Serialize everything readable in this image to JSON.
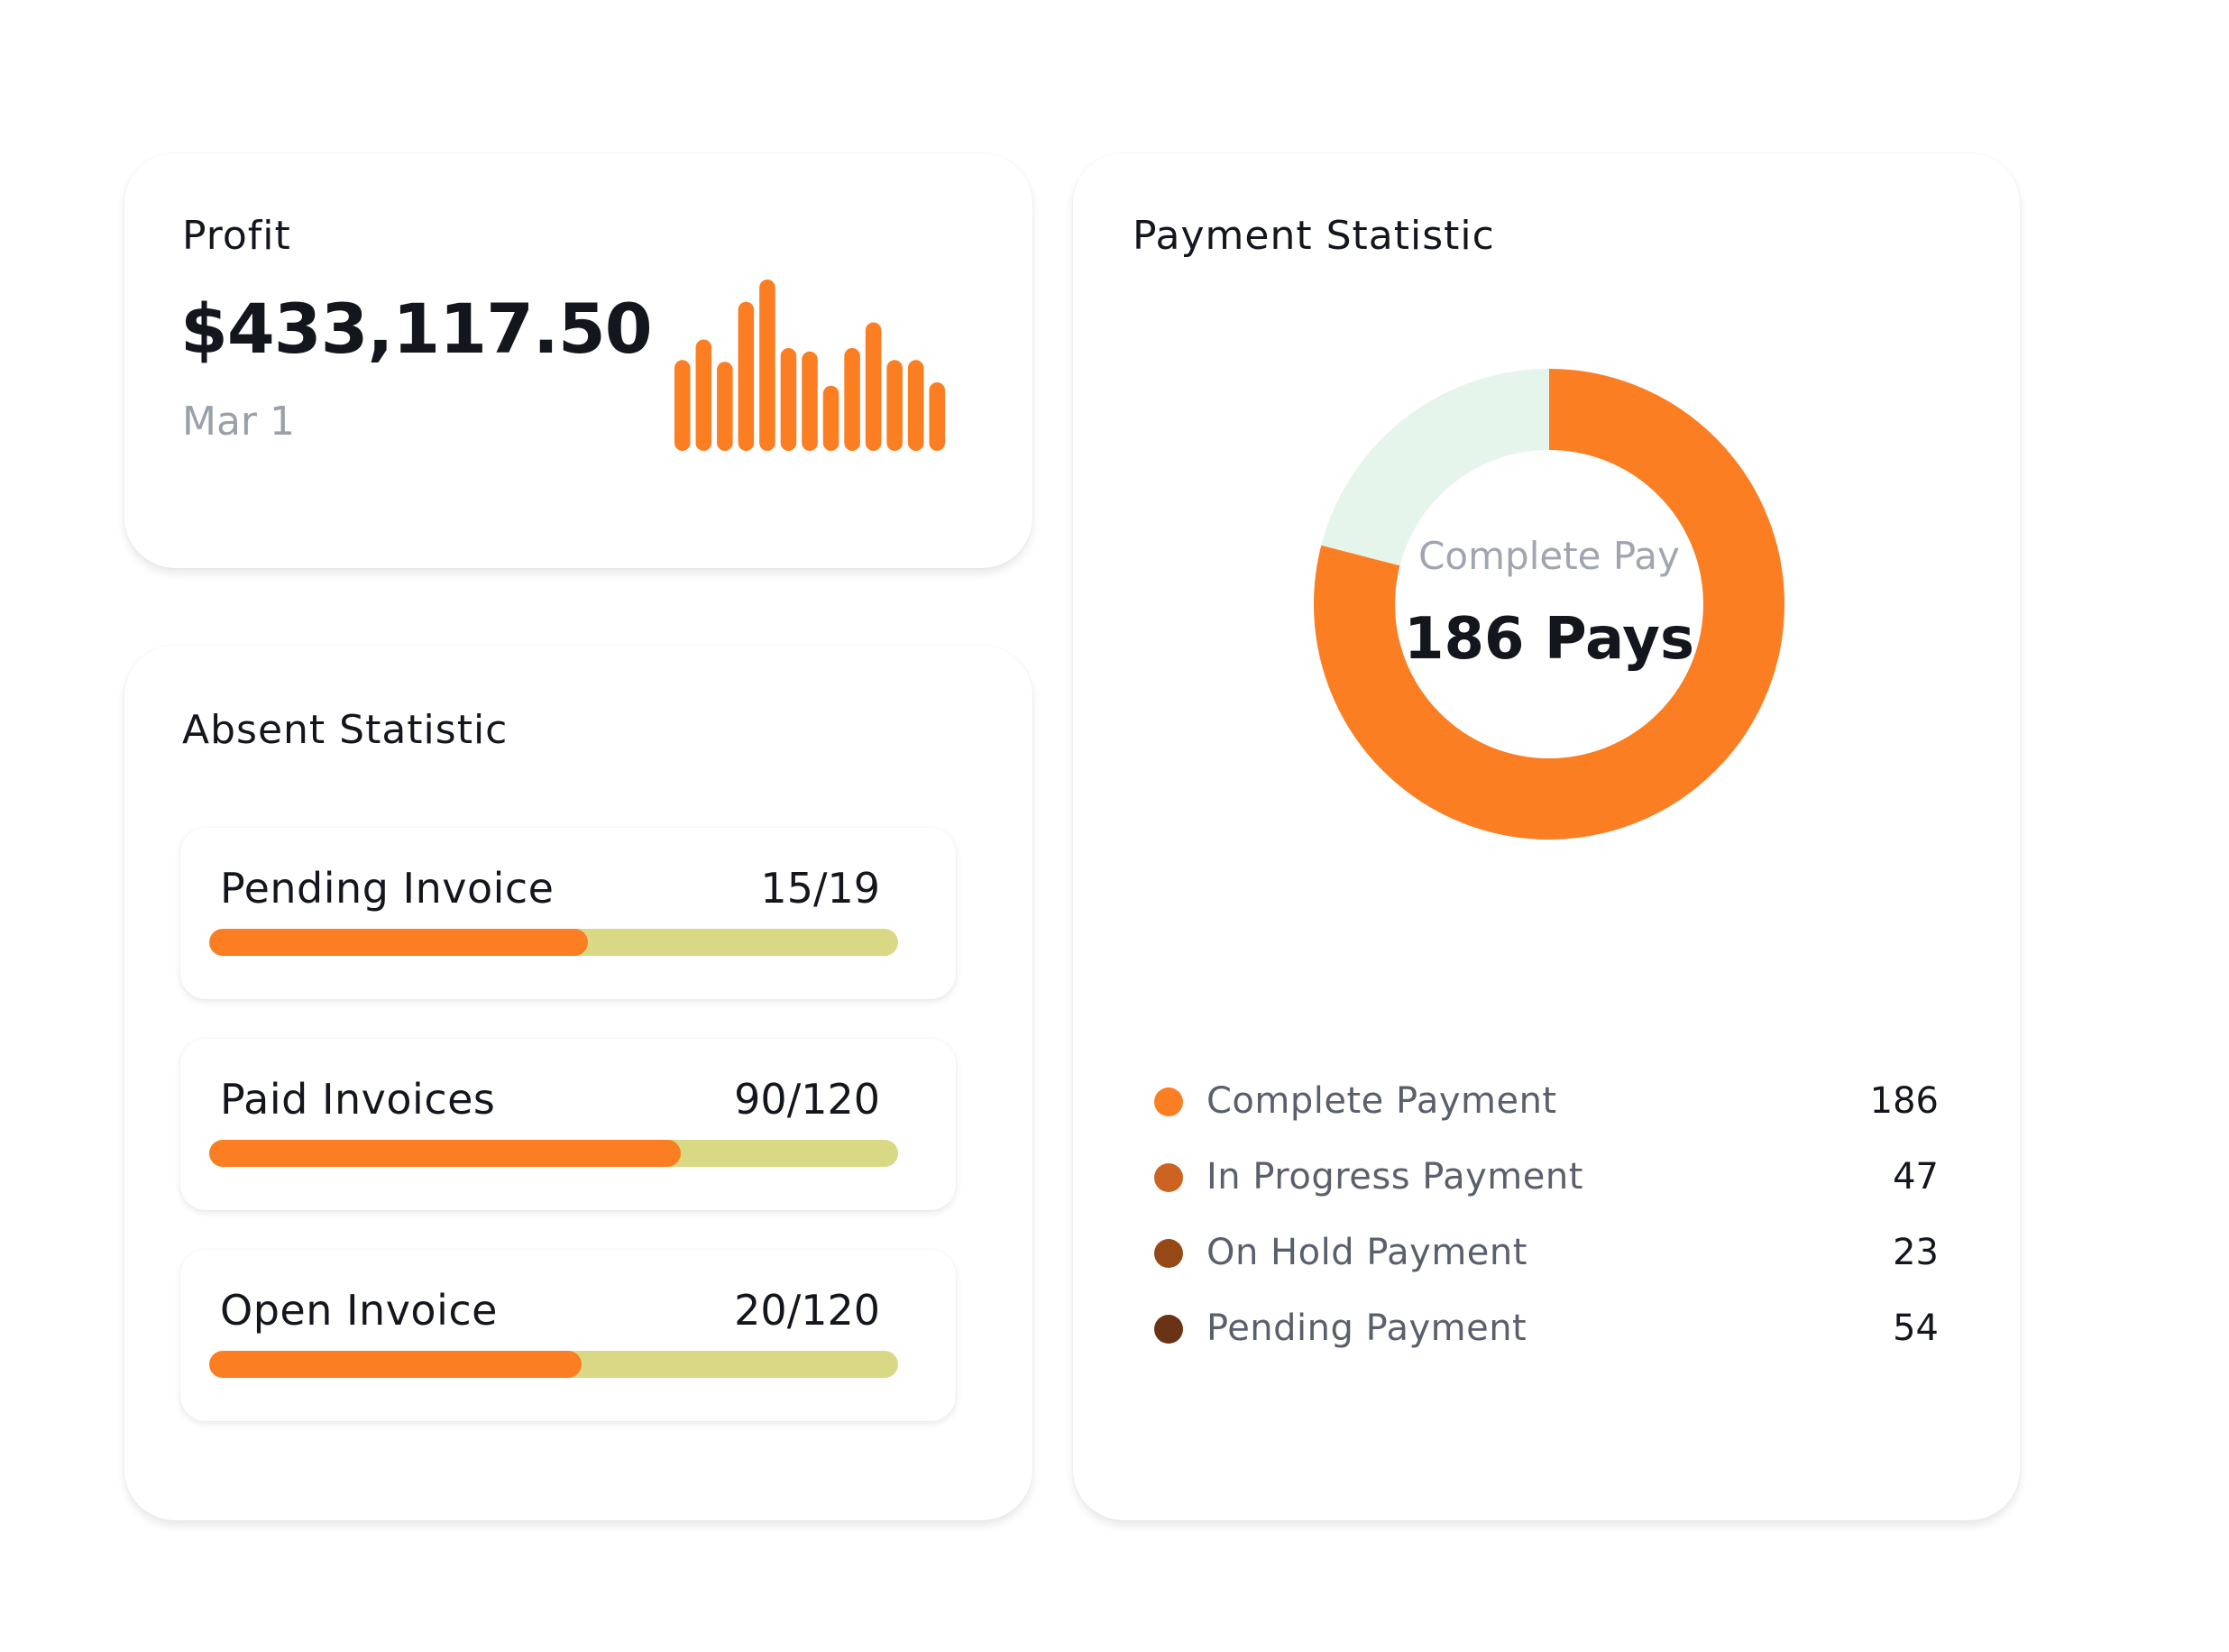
{
  "profit": {
    "title": "Profit",
    "amount": "$433,117.50",
    "date": "Mar 1",
    "chart_data": {
      "type": "bar",
      "values": [
        53,
        65,
        52,
        87,
        100,
        60,
        58,
        38,
        60,
        75,
        53,
        53,
        40
      ],
      "color": "#fb7e23"
    }
  },
  "absent": {
    "title": "Absent Statistic",
    "items": [
      {
        "label": "Pending Invoice",
        "value": "15/19",
        "progress": 0.55
      },
      {
        "label": "Paid Invoices",
        "value": "90/120",
        "progress": 0.685
      },
      {
        "label": "Open Invoice",
        "value": "20/120",
        "progress": 0.54
      }
    ],
    "colors": {
      "fill": "#fb7e23",
      "track": "#d9d885"
    }
  },
  "payment": {
    "title": "Payment Statistic",
    "donut": {
      "subtitle": "Complete Pay",
      "main": "186 Pays",
      "complete_fraction": 0.79,
      "colors": {
        "complete": "#fb7e23",
        "rest": "#e6f5ec"
      }
    },
    "legend": [
      {
        "label": "Complete Payment",
        "value": "186",
        "color": "#fb7e23"
      },
      {
        "label": "In Progress Payment",
        "value": "47",
        "color": "#cd6320"
      },
      {
        "label": "On Hold Payment",
        "value": "23",
        "color": "#974817"
      },
      {
        "label": "Pending Payment",
        "value": "54",
        "color": "#6a3315"
      }
    ]
  }
}
